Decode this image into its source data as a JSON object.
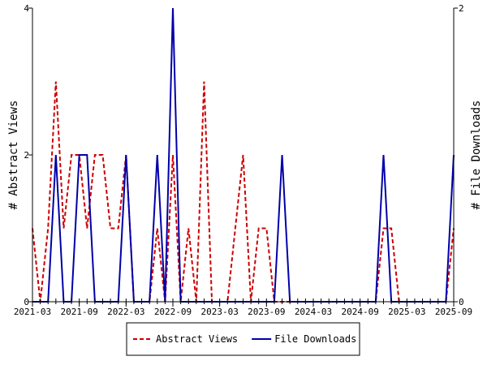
{
  "chart_data": {
    "type": "line",
    "x": [
      "2021-03",
      "2021-04",
      "2021-05",
      "2021-06",
      "2021-07",
      "2021-08",
      "2021-09",
      "2021-10",
      "2021-11",
      "2021-12",
      "2022-01",
      "2022-02",
      "2022-03",
      "2022-04",
      "2022-05",
      "2022-06",
      "2022-07",
      "2022-08",
      "2022-09",
      "2022-10",
      "2022-11",
      "2022-12",
      "2023-01",
      "2023-02",
      "2023-03",
      "2023-04",
      "2023-05",
      "2023-06",
      "2023-07",
      "2023-08",
      "2023-09",
      "2023-10",
      "2023-11",
      "2023-12",
      "2024-01",
      "2024-02",
      "2024-03",
      "2024-04",
      "2024-05",
      "2024-06",
      "2024-07",
      "2024-08",
      "2024-09",
      "2024-10",
      "2024-11",
      "2024-12",
      "2025-01",
      "2025-02",
      "2025-03",
      "2025-04",
      "2025-05",
      "2025-06",
      "2025-07",
      "2025-08",
      "2025-09"
    ],
    "x_ticks": [
      "2021-03",
      "2021-09",
      "2022-03",
      "2022-09",
      "2023-03",
      "2023-09",
      "2024-03",
      "2024-09",
      "2025-03",
      "2025-09"
    ],
    "series": [
      {
        "name": "Abstract Views",
        "axis": "left",
        "color": "#cc0000",
        "dash": "dashed",
        "values": [
          1,
          0,
          1,
          3,
          1,
          2,
          2,
          1,
          2,
          2,
          1,
          1,
          2,
          0,
          0,
          0,
          1,
          0,
          2,
          0,
          1,
          0,
          3,
          0,
          0,
          0,
          1,
          2,
          0,
          1,
          1,
          0,
          0,
          0,
          0,
          0,
          0,
          0,
          0,
          0,
          0,
          0,
          0,
          0,
          0,
          1,
          1,
          0,
          0,
          0,
          0,
          0,
          0,
          0,
          1
        ]
      },
      {
        "name": "File Downloads",
        "axis": "right",
        "color": "#0000aa",
        "dash": "solid",
        "values": [
          0,
          0,
          0,
          1,
          0,
          0,
          1,
          1,
          0,
          0,
          0,
          0,
          1,
          0,
          0,
          0,
          1,
          0,
          2,
          0,
          0,
          0,
          0,
          0,
          0,
          0,
          0,
          0,
          0,
          0,
          0,
          0,
          1,
          0,
          0,
          0,
          0,
          0,
          0,
          0,
          0,
          0,
          0,
          0,
          0,
          1,
          0,
          0,
          0,
          0,
          0,
          0,
          0,
          0,
          1
        ]
      }
    ],
    "ylabel": "# Abstract Views",
    "y2label": "# File Downloads",
    "ylim": [
      0,
      4
    ],
    "y2lim": [
      0,
      2
    ],
    "yticks": [
      0,
      2,
      4
    ],
    "y2ticks": [
      0,
      2
    ],
    "grid": false,
    "legend_position": "bottom"
  }
}
